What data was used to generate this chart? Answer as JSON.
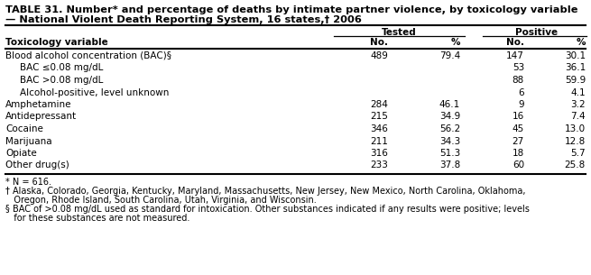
{
  "title_line1": "TABLE 31. Number* and percentage of deaths by intimate partner violence, by toxicology variable",
  "title_line2": "— National Violent Death Reporting System, 16 states,† 2006",
  "rows": [
    {
      "label": "Blood alcohol concentration (BAC)§",
      "indent": 0,
      "bold": false,
      "values": [
        "489",
        "79.4",
        "147",
        "30.1"
      ]
    },
    {
      "label": "BAC ≤0.08 mg/dL",
      "indent": 1,
      "bold": false,
      "values": [
        "",
        "",
        "53",
        "36.1"
      ]
    },
    {
      "label": "BAC >0.08 mg/dL",
      "indent": 1,
      "bold": false,
      "values": [
        "",
        "",
        "88",
        "59.9"
      ]
    },
    {
      "label": "Alcohol-positive, level unknown",
      "indent": 1,
      "bold": false,
      "values": [
        "",
        "",
        "6",
        "4.1"
      ]
    },
    {
      "label": "Amphetamine",
      "indent": 0,
      "bold": false,
      "values": [
        "284",
        "46.1",
        "9",
        "3.2"
      ]
    },
    {
      "label": "Antidepressant",
      "indent": 0,
      "bold": false,
      "values": [
        "215",
        "34.9",
        "16",
        "7.4"
      ]
    },
    {
      "label": "Cocaine",
      "indent": 0,
      "bold": false,
      "values": [
        "346",
        "56.2",
        "45",
        "13.0"
      ]
    },
    {
      "label": "Marijuana",
      "indent": 0,
      "bold": false,
      "values": [
        "211",
        "34.3",
        "27",
        "12.8"
      ]
    },
    {
      "label": "Opiate",
      "indent": 0,
      "bold": false,
      "values": [
        "316",
        "51.3",
        "18",
        "5.7"
      ]
    },
    {
      "label": "Other drug(s)",
      "indent": 0,
      "bold": false,
      "values": [
        "233",
        "37.8",
        "60",
        "25.8"
      ]
    }
  ],
  "footnote1": "* N = 616.",
  "footnote2": "† Alaska, Colorado, Georgia, Kentucky, Maryland, Massachusetts, New Jersey, New Mexico, North Carolina, Oklahoma,",
  "footnote2b": "   Oregon, Rhode Island, South Carolina, Utah, Virginia, and Wisconsin.",
  "footnote3": "§ BAC of >0.08 mg/dL used as standard for intoxication. Other substances indicated if any results were positive; levels",
  "footnote3b": "   for these substances are not measured.",
  "bg_color": "#ffffff",
  "text_color": "#000000",
  "font_size": 7.5,
  "title_font_size": 8.2,
  "footnote_font_size": 7.0
}
